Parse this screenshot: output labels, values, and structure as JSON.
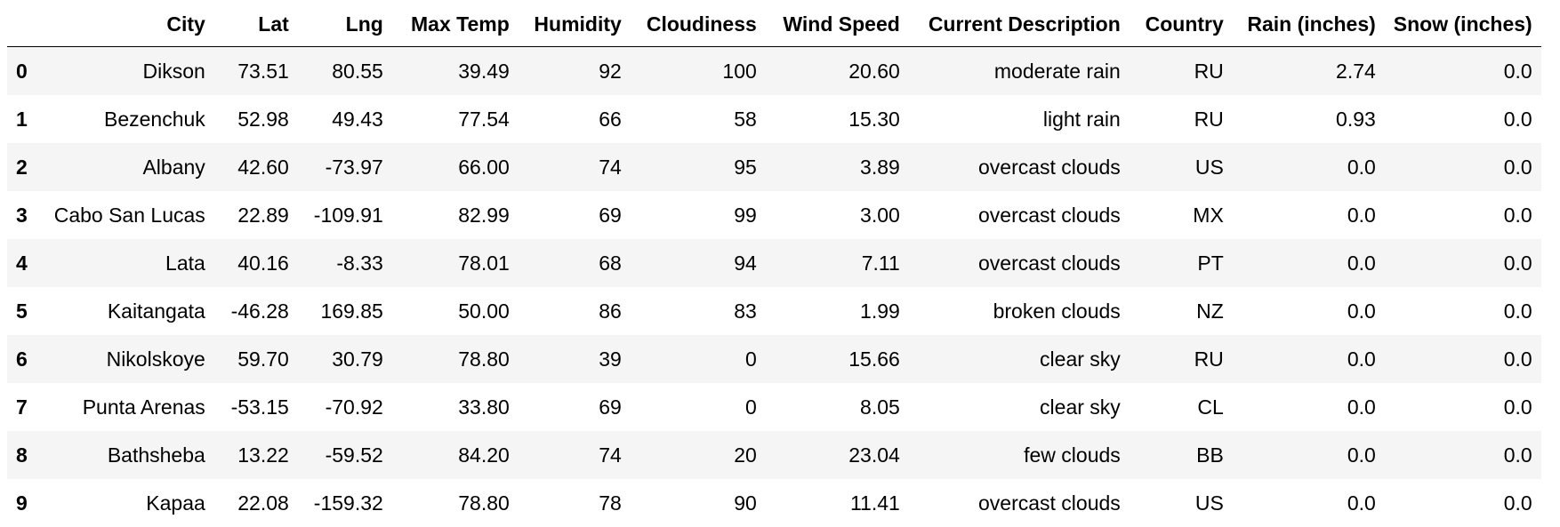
{
  "table": {
    "index_header": "",
    "columns": [
      "City",
      "Lat",
      "Lng",
      "Max Temp",
      "Humidity",
      "Cloudiness",
      "Wind Speed",
      "Current Description",
      "Country",
      "Rain (inches)",
      "Snow (inches)"
    ],
    "rows": [
      {
        "index": "0",
        "cells": [
          "Dikson",
          "73.51",
          "80.55",
          "39.49",
          "92",
          "100",
          "20.60",
          "moderate rain",
          "RU",
          "2.74",
          "0.0"
        ]
      },
      {
        "index": "1",
        "cells": [
          "Bezenchuk",
          "52.98",
          "49.43",
          "77.54",
          "66",
          "58",
          "15.30",
          "light rain",
          "RU",
          "0.93",
          "0.0"
        ]
      },
      {
        "index": "2",
        "cells": [
          "Albany",
          "42.60",
          "-73.97",
          "66.00",
          "74",
          "95",
          "3.89",
          "overcast clouds",
          "US",
          "0.0",
          "0.0"
        ]
      },
      {
        "index": "3",
        "cells": [
          "Cabo San Lucas",
          "22.89",
          "-109.91",
          "82.99",
          "69",
          "99",
          "3.00",
          "overcast clouds",
          "MX",
          "0.0",
          "0.0"
        ]
      },
      {
        "index": "4",
        "cells": [
          "Lata",
          "40.16",
          "-8.33",
          "78.01",
          "68",
          "94",
          "7.11",
          "overcast clouds",
          "PT",
          "0.0",
          "0.0"
        ]
      },
      {
        "index": "5",
        "cells": [
          "Kaitangata",
          "-46.28",
          "169.85",
          "50.00",
          "86",
          "83",
          "1.99",
          "broken clouds",
          "NZ",
          "0.0",
          "0.0"
        ]
      },
      {
        "index": "6",
        "cells": [
          "Nikolskoye",
          "59.70",
          "30.79",
          "78.80",
          "39",
          "0",
          "15.66",
          "clear sky",
          "RU",
          "0.0",
          "0.0"
        ]
      },
      {
        "index": "7",
        "cells": [
          "Punta Arenas",
          "-53.15",
          "-70.92",
          "33.80",
          "69",
          "0",
          "8.05",
          "clear sky",
          "CL",
          "0.0",
          "0.0"
        ]
      },
      {
        "index": "8",
        "cells": [
          "Bathsheba",
          "13.22",
          "-59.52",
          "84.20",
          "74",
          "20",
          "23.04",
          "few clouds",
          "BB",
          "0.0",
          "0.0"
        ]
      },
      {
        "index": "9",
        "cells": [
          "Kapaa",
          "22.08",
          "-159.32",
          "78.80",
          "78",
          "90",
          "11.41",
          "overcast clouds",
          "US",
          "0.0",
          "0.0"
        ]
      }
    ]
  },
  "colors": {
    "stripe": "#f5f5f5",
    "background": "#ffffff",
    "text": "#000000",
    "header_rule": "#000000"
  }
}
